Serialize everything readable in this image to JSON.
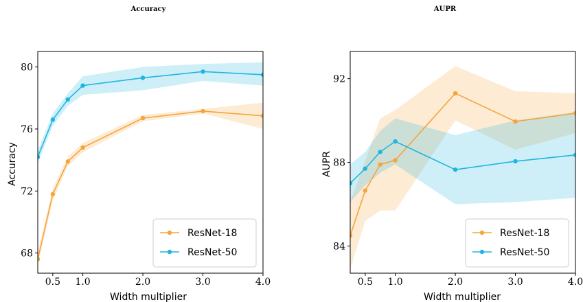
{
  "chart_data": [
    {
      "type": "line",
      "title": "Accuracy",
      "xlabel": "Width multiplier",
      "ylabel": "Accuracy",
      "xlim": [
        0.25,
        4.0
      ],
      "ylim": [
        66.7,
        81.0
      ],
      "xticks": [
        0.5,
        1.0,
        2.0,
        3.0,
        4.0
      ],
      "xtick_labels": [
        "0.5",
        "1.0",
        "2.0",
        "3.0",
        "4.0"
      ],
      "yticks": [
        68,
        72,
        76,
        80
      ],
      "ytick_labels": [
        "68",
        "72",
        "76",
        "80"
      ],
      "legend_position": "bottom-right",
      "series": [
        {
          "name": "ResNet-18",
          "color": "#F5A53B",
          "x": [
            0.25,
            0.5,
            0.75,
            1.0,
            2.0,
            3.0,
            4.0
          ],
          "y": [
            67.6,
            71.8,
            73.9,
            74.8,
            76.7,
            77.15,
            76.85
          ],
          "lower": [
            67.2,
            71.4,
            73.6,
            74.5,
            76.5,
            77.0,
            76.0
          ],
          "upper": [
            68.0,
            72.2,
            74.2,
            75.1,
            76.9,
            77.3,
            77.7
          ]
        },
        {
          "name": "ResNet-50",
          "color": "#1EB6E0",
          "x": [
            0.25,
            0.5,
            0.75,
            1.0,
            2.0,
            3.0,
            4.0
          ],
          "y": [
            74.2,
            76.6,
            77.9,
            78.8,
            79.3,
            79.7,
            79.5
          ],
          "lower": [
            73.8,
            76.2,
            77.5,
            78.2,
            78.5,
            79.1,
            78.8
          ],
          "upper": [
            74.6,
            77.0,
            78.3,
            79.4,
            80.0,
            80.2,
            80.3
          ]
        }
      ]
    },
    {
      "type": "line",
      "title": "AUPR",
      "xlabel": "Width multiplier",
      "ylabel": "AUPR",
      "xlim": [
        0.25,
        4.0
      ],
      "ylim": [
        82.7,
        93.3
      ],
      "xticks": [
        0.5,
        1.0,
        2.0,
        3.0,
        4.0
      ],
      "xtick_labels": [
        "0.5",
        "1.0",
        "2.0",
        "3.0",
        "4.0"
      ],
      "yticks": [
        84,
        88,
        92
      ],
      "ytick_labels": [
        "84",
        "88",
        "92"
      ],
      "legend_position": "bottom-right",
      "series": [
        {
          "name": "ResNet-18",
          "color": "#F5A53B",
          "x": [
            0.25,
            0.5,
            0.75,
            1.0,
            2.0,
            3.0,
            4.0
          ],
          "y": [
            84.5,
            86.65,
            87.9,
            88.1,
            91.3,
            89.95,
            90.35
          ],
          "lower": [
            82.9,
            85.2,
            85.7,
            85.7,
            90.0,
            88.6,
            89.4
          ],
          "upper": [
            86.1,
            88.1,
            90.1,
            90.5,
            92.6,
            91.4,
            91.3
          ]
        },
        {
          "name": "ResNet-50",
          "color": "#1EB6E0",
          "x": [
            0.25,
            0.5,
            0.75,
            1.0,
            2.0,
            3.0,
            4.0
          ],
          "y": [
            87.0,
            87.7,
            88.5,
            89.0,
            87.65,
            88.05,
            88.35
          ],
          "lower": [
            86.1,
            86.9,
            87.5,
            87.9,
            86.0,
            86.1,
            86.3
          ],
          "upper": [
            87.9,
            88.5,
            89.5,
            90.1,
            89.3,
            90.0,
            90.4
          ]
        }
      ]
    }
  ]
}
